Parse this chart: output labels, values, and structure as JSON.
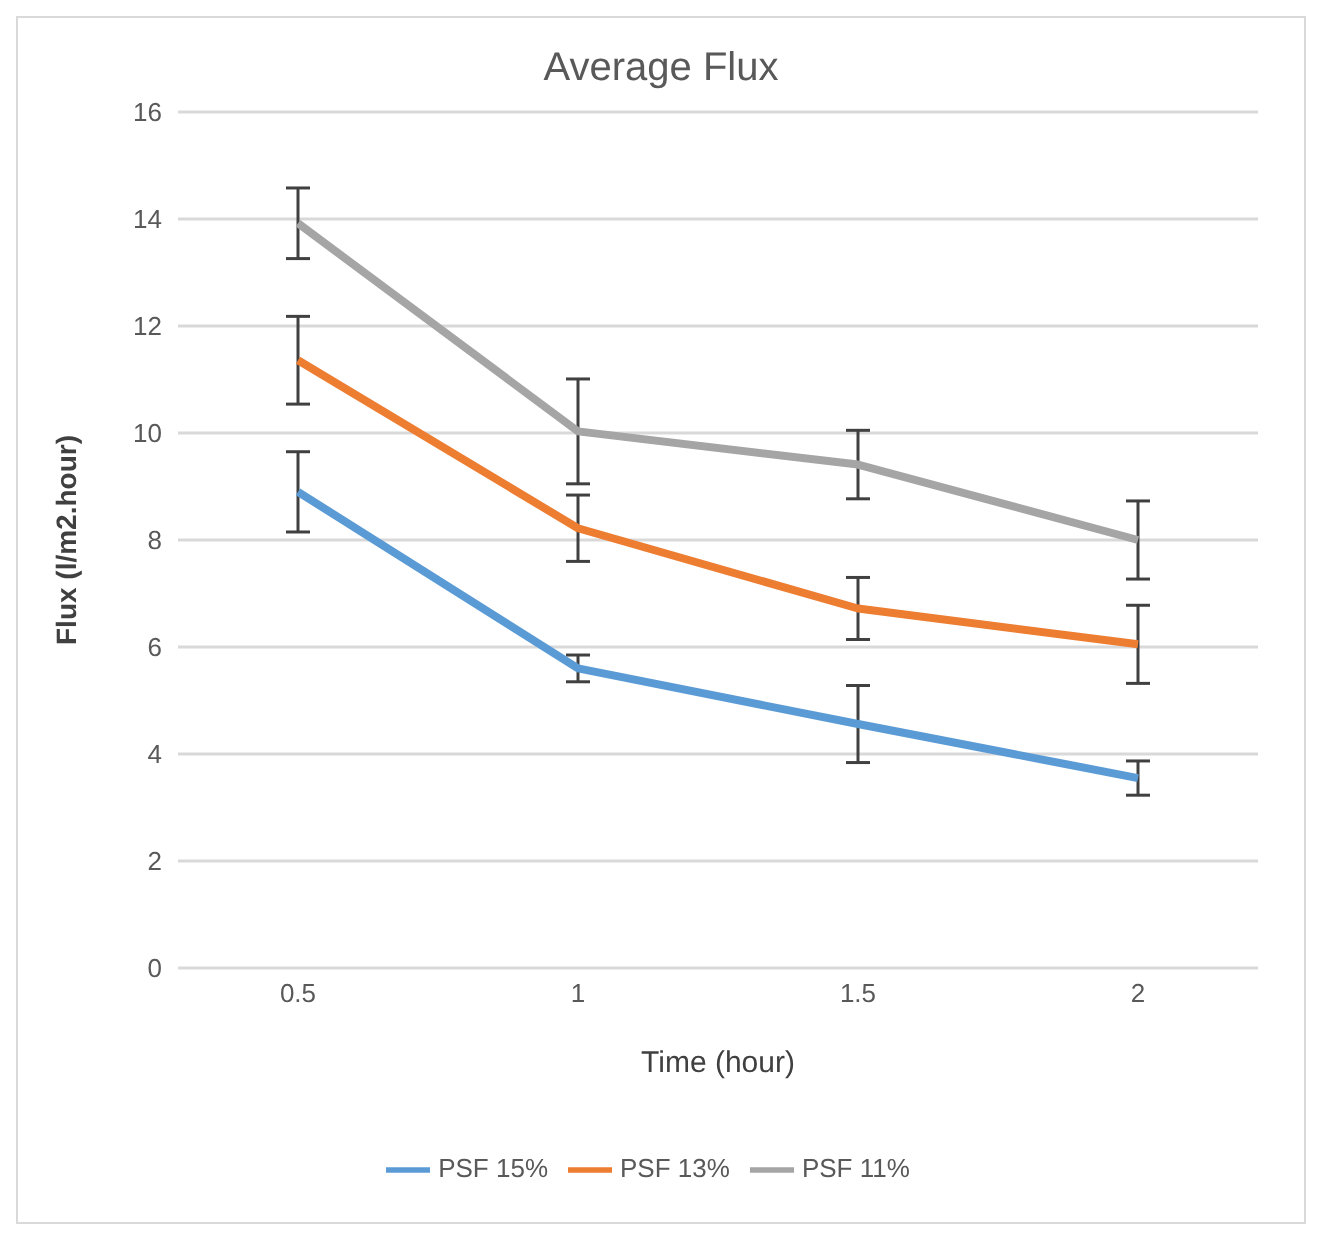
{
  "chart_data": {
    "type": "line",
    "title": "Average Flux",
    "xlabel": "Time (hour)",
    "ylabel": "Flux (l/m2.hour)",
    "categories": [
      "0.5",
      "1",
      "1.5",
      "2"
    ],
    "series": [
      {
        "name": "PSF 15%",
        "color": "#5b9bd5",
        "values": [
          8.9,
          5.6,
          4.56,
          3.55
        ],
        "errors": [
          0.75,
          0.25,
          0.72,
          0.32
        ]
      },
      {
        "name": "PSF 13%",
        "color": "#ed7d31",
        "values": [
          11.36,
          8.22,
          6.72,
          6.05
        ],
        "errors": [
          0.82,
          0.62,
          0.58,
          0.73
        ]
      },
      {
        "name": "PSF 11%",
        "color": "#a5a5a5",
        "values": [
          13.92,
          10.03,
          9.41,
          8.0
        ],
        "errors": [
          0.66,
          0.98,
          0.64,
          0.73
        ]
      }
    ],
    "ylim": [
      0,
      16
    ],
    "yticks": [
      0,
      2,
      4,
      6,
      8,
      10,
      12,
      14,
      16
    ],
    "grid": "y",
    "legend": "bottom",
    "marker": "none",
    "line_style": "solid"
  }
}
